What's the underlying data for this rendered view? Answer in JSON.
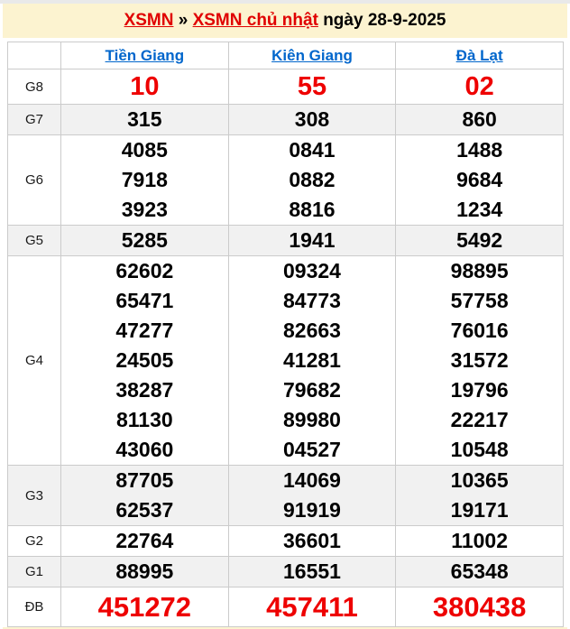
{
  "title": {
    "link1": "XSMN",
    "separator": " » ",
    "link2": "XSMN chủ nhật",
    "suffix": " ngày 28-9-2025"
  },
  "colors": {
    "accent_red": "#ee0000",
    "title_link_red": "#e00000",
    "link_blue": "#0066cc",
    "band_cream": "#fcf3d0",
    "row_stripe": "#f1f1f1",
    "border": "#cbcbcb"
  },
  "table": {
    "columns": [
      "Tiền Giang",
      "Kiên Giang",
      "Đà Lạt"
    ],
    "rows": [
      {
        "label": "G8",
        "highlight": true,
        "cells": [
          [
            "10"
          ],
          [
            "55"
          ],
          [
            "02"
          ]
        ]
      },
      {
        "label": "G7",
        "highlight": false,
        "cells": [
          [
            "315"
          ],
          [
            "308"
          ],
          [
            "860"
          ]
        ]
      },
      {
        "label": "G6",
        "highlight": false,
        "cells": [
          [
            "4085",
            "7918",
            "3923"
          ],
          [
            "0841",
            "0882",
            "8816"
          ],
          [
            "1488",
            "9684",
            "1234"
          ]
        ]
      },
      {
        "label": "G5",
        "highlight": false,
        "cells": [
          [
            "5285"
          ],
          [
            "1941"
          ],
          [
            "5492"
          ]
        ]
      },
      {
        "label": "G4",
        "highlight": false,
        "cells": [
          [
            "62602",
            "65471",
            "47277",
            "24505",
            "38287",
            "81130",
            "43060"
          ],
          [
            "09324",
            "84773",
            "82663",
            "41281",
            "79682",
            "89980",
            "04527"
          ],
          [
            "98895",
            "57758",
            "76016",
            "31572",
            "19796",
            "22217",
            "10548"
          ]
        ]
      },
      {
        "label": "G3",
        "highlight": false,
        "cells": [
          [
            "87705",
            "62537"
          ],
          [
            "14069",
            "91919"
          ],
          [
            "10365",
            "19171"
          ]
        ]
      },
      {
        "label": "G2",
        "highlight": false,
        "cells": [
          [
            "22764"
          ],
          [
            "36601"
          ],
          [
            "11002"
          ]
        ]
      },
      {
        "label": "G1",
        "highlight": false,
        "cells": [
          [
            "88995"
          ],
          [
            "16551"
          ],
          [
            "65348"
          ]
        ]
      },
      {
        "label": "ĐB",
        "highlight": true,
        "cells": [
          [
            "451272"
          ],
          [
            "457411"
          ],
          [
            "380438"
          ]
        ]
      }
    ]
  }
}
